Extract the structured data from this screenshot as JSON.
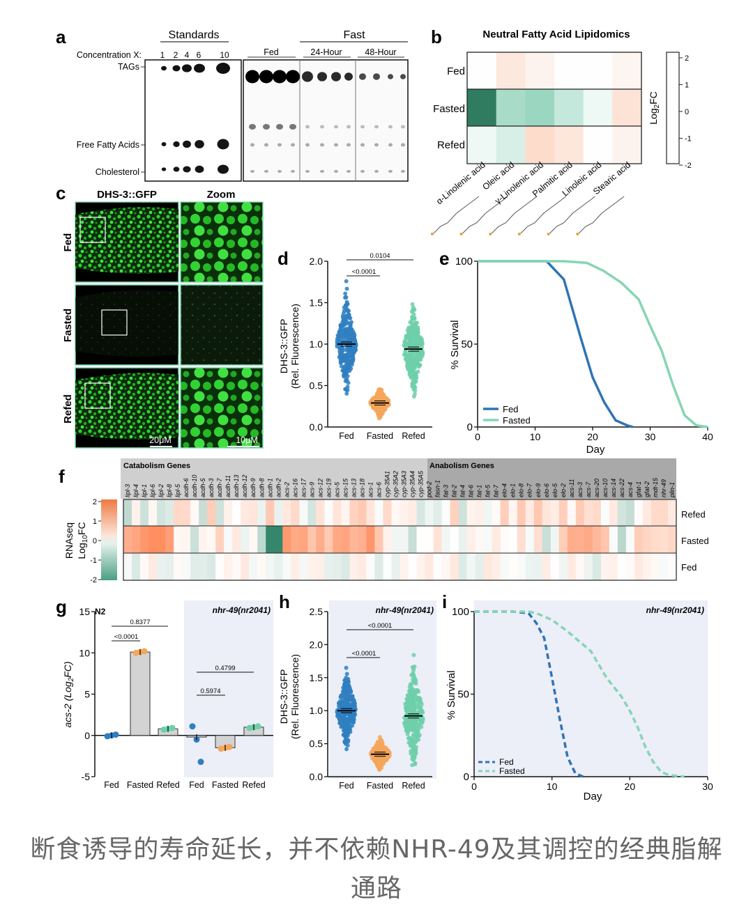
{
  "panels": {
    "a": "a",
    "b": "b",
    "c": "c",
    "d": "d",
    "e": "e",
    "f": "f",
    "g": "g",
    "h": "h",
    "i": "i"
  },
  "a": {
    "standards_label": "Standards",
    "fast_label": "Fast",
    "conc_label": "Concentration X:",
    "conc_values": [
      "1",
      "2",
      "4",
      "6",
      "10"
    ],
    "lane_labels": [
      "Fed",
      "24-Hour",
      "48-Hour"
    ],
    "row_labels": [
      "TAGs",
      "Free Fatty Acids",
      "Cholesterol"
    ]
  },
  "b": {
    "title": "Neutral Fatty Acid Lipidomics",
    "rows": [
      "Fed",
      "Fasted",
      "Refed"
    ],
    "cols": [
      "α-Linolenic acid",
      "Oleic acid",
      "γ-Linolenic acid",
      "Palmitic acid",
      "Linoleic acid",
      "Stearic acid"
    ],
    "legend_label": "Log2FC",
    "legend_ticks": [
      "2",
      "1",
      "0",
      "-1",
      "-2"
    ]
  },
  "c": {
    "title_left": "DHS-3::GFP",
    "title_right": "Zoom",
    "rows": [
      "Fed",
      "Fasted",
      "Refed"
    ],
    "scale_left": "20μM",
    "scale_right": "10μM"
  },
  "d": {
    "ylabel1": "DHS-3::GFP",
    "ylabel2": "(Rel. Fluorescence)",
    "yticks": [
      "2.0",
      "1.5",
      "1.0",
      "0.5",
      "0.0"
    ],
    "categories": [
      "Fed",
      "Fasted",
      "Refed"
    ],
    "p1": "<0.0001",
    "p2": "0.0104"
  },
  "e": {
    "ylabel": "% Survival",
    "xlabel": "Day",
    "yticks": [
      "100",
      "50",
      "0"
    ],
    "xticks": [
      "0",
      "10",
      "20",
      "30",
      "40"
    ],
    "legend": [
      "Fed",
      "Fasted"
    ]
  },
  "f": {
    "catabolism_label": "Catabolism Genes",
    "anabolism_label": "Anabolism Genes",
    "genes": [
      "lipl-3",
      "lipl-4",
      "lipl-1",
      "lipl-6",
      "lipl-2",
      "lipl-8",
      "lipl-5",
      "acdh-6",
      "acdh-10",
      "acdh-5",
      "acdh-3",
      "acdh-7",
      "acdh-11",
      "acdh-13",
      "acdh-12",
      "acdh-9",
      "acdh-8",
      "acdh-1",
      "acdh-2",
      "acs-2",
      "acs-16",
      "acs-17",
      "acs-9",
      "acs-12",
      "acs-19",
      "acs-5",
      "acs-15",
      "acs-13",
      "acs-18",
      "acs-1",
      "acs-6",
      "cyp-35A1",
      "cyp-35A2",
      "cyp-35A3",
      "cyp-35A4",
      "cyp-35A5",
      "pod-2",
      "fasn-1",
      "fat-3",
      "fat-2",
      "fat-4",
      "fat-6",
      "fat-1",
      "fat-5",
      "fat-7",
      "elo-4",
      "elo-1",
      "elo-8",
      "elo-7",
      "elo-9",
      "elo-6",
      "elo-5",
      "elo-2",
      "acs-11",
      "acs-3",
      "acs-7",
      "acs-20",
      "acs-10",
      "acs-14",
      "acs-22",
      "acs-4",
      "gfat-1",
      "gfat-2",
      "mdt-15",
      "nhr-49",
      "plin-1"
    ],
    "rows": [
      "Refed",
      "Fasted",
      "Fed"
    ],
    "ylabel1": "RNAseq",
    "ylabel2": "Log10FC",
    "scale_ticks": [
      "2",
      "1",
      "0",
      "-1",
      "-2"
    ]
  },
  "g": {
    "n2_label": "N2",
    "mutant_label": "nhr-49(nr2041)",
    "ylabel": "acs-2 (Log2FC)",
    "yticks": [
      "15",
      "10",
      "5",
      "0",
      "-5"
    ],
    "categories": [
      "Fed",
      "Fasted",
      "Refed",
      "Fed",
      "Fasted",
      "Refed"
    ],
    "p_values": [
      "<0.0001",
      "0.8377",
      "0.5974",
      "0.4799"
    ]
  },
  "h": {
    "title": "nhr-49(nr2041)",
    "ylabel1": "DHS-3::GFP",
    "ylabel2": "(Rel. Fluorescence)",
    "yticks": [
      "2.5",
      "2.0",
      "1.5",
      "1.0",
      "0.5",
      "0.0"
    ],
    "categories": [
      "Fed",
      "Fasted",
      "Refed"
    ],
    "p1": "<0.0001",
    "p2": "<0.0001"
  },
  "i": {
    "title": "nhr-49(nr2041)",
    "ylabel": "% Survival",
    "xlabel": "Day",
    "yticks": [
      "100",
      "50",
      "0"
    ],
    "xticks": [
      "0",
      "10",
      "20",
      "30"
    ],
    "legend": [
      "Fed",
      "Fasted"
    ]
  },
  "caption": "断食诱导的寿命延长，并不依赖NHR-49及其调控的经典脂解通路",
  "colors": {
    "fed": "#2f7fc1",
    "fasted": "#f4a65a",
    "refed": "#6fcfaa",
    "survival_fed": "#2e74b5",
    "survival_fasted": "#86d5b4",
    "heat_pos": "#ee7a43",
    "heat_neg": "#1f7a5c"
  },
  "chart_data": [
    {
      "panel": "d",
      "type": "scatter",
      "categories": [
        "Fed",
        "Fasted",
        "Refed"
      ],
      "series": [
        {
          "name": "Fed",
          "mean": 1.0,
          "min": 0.28,
          "max": 1.77
        },
        {
          "name": "Fasted",
          "mean": 0.29,
          "min": 0.1,
          "max": 0.55
        },
        {
          "name": "Refed",
          "mean": 0.94,
          "min": 0.35,
          "max": 1.77
        }
      ],
      "ylim": [
        0,
        2.0
      ]
    },
    {
      "panel": "e",
      "type": "line",
      "xlabel": "Day",
      "ylabel": "% Survival",
      "ylim": [
        0,
        100
      ],
      "xlim": [
        0,
        40
      ],
      "series": [
        {
          "name": "Fed",
          "x": [
            0,
            5,
            10,
            12,
            15,
            18,
            20,
            22,
            24,
            26,
            27
          ],
          "y": [
            100,
            100,
            100,
            100,
            89,
            53,
            30,
            15,
            4,
            1,
            0
          ]
        },
        {
          "name": "Fasted",
          "x": [
            0,
            10,
            15,
            19,
            22,
            25,
            28,
            30,
            32,
            34,
            36,
            38,
            40
          ],
          "y": [
            100,
            100,
            100,
            99,
            94,
            87,
            77,
            61,
            46,
            25,
            7,
            1,
            0
          ]
        }
      ]
    },
    {
      "panel": "g",
      "type": "bar",
      "categories": [
        "Fed",
        "Fasted",
        "Refed",
        "Fed",
        "Fasted",
        "Refed"
      ],
      "values": [
        0.0,
        10.1,
        0.8,
        -0.2,
        -1.5,
        1.0
      ],
      "ylabel": "acs-2 (Log2FC)",
      "ylim": [
        -5,
        15
      ]
    },
    {
      "panel": "h",
      "type": "scatter",
      "categories": [
        "Fed",
        "Fasted",
        "Refed"
      ],
      "series": [
        {
          "name": "Fed",
          "mean": 1.0,
          "min": 0.3,
          "max": 1.75
        },
        {
          "name": "Fasted",
          "mean": 0.34,
          "min": 0.1,
          "max": 0.72
        },
        {
          "name": "Refed",
          "mean": 0.92,
          "min": 0.15,
          "max": 2.2
        }
      ],
      "ylim": [
        0,
        2.5
      ]
    },
    {
      "panel": "i",
      "type": "line",
      "xlabel": "Day",
      "ylabel": "% Survival",
      "ylim": [
        0,
        100
      ],
      "xlim": [
        0,
        30
      ],
      "series": [
        {
          "name": "Fed",
          "x": [
            0,
            5,
            7,
            8,
            9,
            10,
            11,
            12,
            13,
            14
          ],
          "y": [
            100,
            100,
            99,
            93,
            84,
            60,
            35,
            12,
            2,
            0
          ]
        },
        {
          "name": "Fasted",
          "x": [
            0,
            7,
            8,
            10,
            12,
            15,
            17,
            19,
            20,
            21,
            22,
            23,
            24,
            25,
            27
          ],
          "y": [
            100,
            100,
            99,
            95,
            88,
            76,
            60,
            48,
            40,
            30,
            18,
            9,
            3,
            1,
            0
          ]
        }
      ]
    }
  ]
}
